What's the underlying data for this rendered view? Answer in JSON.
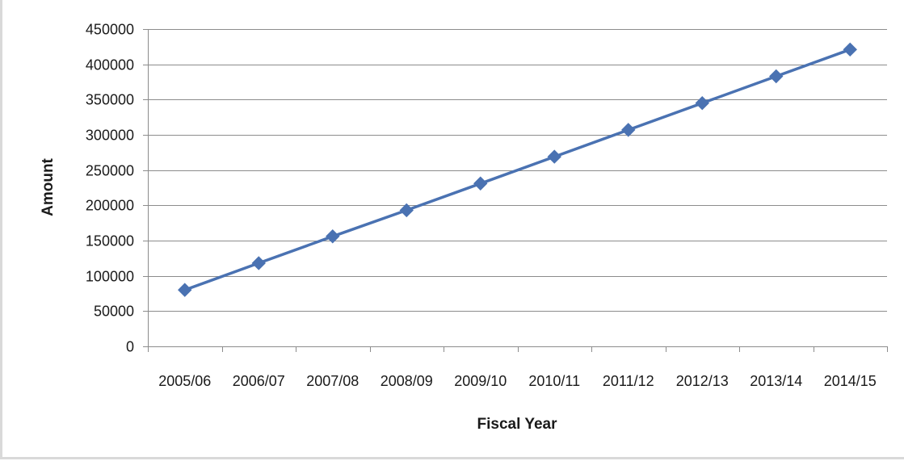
{
  "chart_data": {
    "type": "line",
    "title": "",
    "xlabel": "Fiscal Year",
    "ylabel": "Amount",
    "categories": [
      "2005/06",
      "2006/07",
      "2007/08",
      "2008/09",
      "2009/10",
      "2010/11",
      "2011/12",
      "2012/13",
      "2013/14",
      "2014/15"
    ],
    "series": [
      {
        "values": [
          80000,
          118000,
          156000,
          193000,
          231000,
          269000,
          307000,
          345000,
          383000,
          421000
        ],
        "color": "#4a72b2",
        "marker": "diamond"
      }
    ],
    "ylim": [
      0,
      450000
    ],
    "yticks": [
      0,
      50000,
      100000,
      150000,
      200000,
      250000,
      300000,
      350000,
      400000,
      450000
    ],
    "ytick_labels": [
      "0",
      "50000",
      "100000",
      "150000",
      "200000",
      "250000",
      "300000",
      "350000",
      "400000",
      "450000"
    ],
    "grid": true,
    "legend": "none",
    "colors": {
      "gridline": "#8c8c8c",
      "axis": "#8c8c8c",
      "frame_border": "#d9d9d9"
    }
  }
}
